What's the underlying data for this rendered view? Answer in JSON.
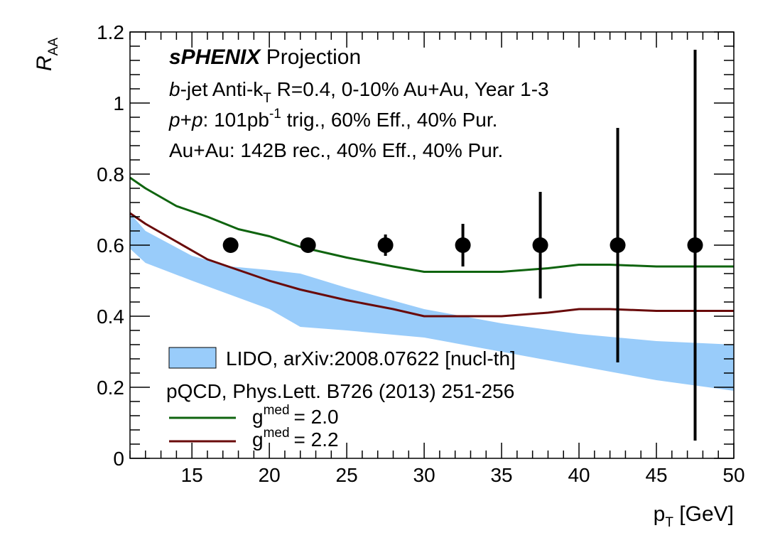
{
  "chart_data": {
    "type": "line",
    "title": "",
    "xlabel": "p",
    "xlabel_sub": "T",
    "xlabel_unit": " [GeV]",
    "ylabel": "R",
    "ylabel_sub": "AA",
    "xlim": [
      11,
      50
    ],
    "ylim": [
      0,
      1.2
    ],
    "x_ticks": [
      15,
      20,
      25,
      30,
      35,
      40,
      45,
      50
    ],
    "y_ticks": [
      0,
      0.2,
      0.4,
      0.6,
      0.8,
      1,
      1.2
    ],
    "y_tick_labels": [
      "0",
      "0.2",
      "0.4",
      "0.6",
      "0.8",
      "1",
      "1.2"
    ],
    "grid": false,
    "annotations": {
      "exp": "sPHENIX",
      "proj": " Projection",
      "line1_b": "b",
      "line1_a": "-jet Anti-k",
      "line1_sub": "T",
      "line1_b2": " R=0.4, 0-10% Au+Au, Year 1-3",
      "line2_p1": "p",
      "line2_plus": "+",
      "line2_p2": "p",
      "line2_a": ": 101pb",
      "line2_sup": "-1",
      "line2_b": " trig., 60% Eff., 40% Pur.",
      "line3": "Au+Au: 142B rec., 40% Eff., 40% Pur."
    },
    "legend": {
      "band_label": "LIDO, arXiv:2008.07622 [nucl-th]",
      "header": "pQCD, Phys.Lett. B726 (2013) 251-256",
      "g": "g",
      "med": "med",
      "line_labels": [
        "= 2.0",
        "= 2.2"
      ],
      "placement": "bottom-left"
    },
    "points": {
      "name": "sPHENIX Projection",
      "x": [
        17.5,
        22.5,
        27.5,
        32.5,
        37.5,
        42.5,
        47.5
      ],
      "y": [
        0.6,
        0.6,
        0.6,
        0.6,
        0.6,
        0.6,
        0.6
      ],
      "err": [
        0.003,
        0.005,
        0.03,
        0.06,
        0.15,
        0.33,
        0.55
      ]
    },
    "band": {
      "name": "LIDO, arXiv:2008.07622 [nucl-th]",
      "x": [
        11,
        12,
        15,
        17.5,
        20,
        22,
        25,
        30,
        35,
        40,
        45,
        50
      ],
      "upper": [
        0.69,
        0.64,
        0.57,
        0.54,
        0.53,
        0.52,
        0.48,
        0.42,
        0.38,
        0.35,
        0.33,
        0.32
      ],
      "lower": [
        0.59,
        0.55,
        0.5,
        0.46,
        0.42,
        0.37,
        0.36,
        0.34,
        0.3,
        0.26,
        0.22,
        0.19
      ]
    },
    "series": [
      {
        "name": "g med = 2.0",
        "color": "#0f640f",
        "x": [
          11,
          12,
          14,
          16,
          18,
          20,
          22,
          25,
          28,
          30,
          32,
          35,
          38,
          40,
          42,
          45,
          48,
          50
        ],
        "y": [
          0.79,
          0.76,
          0.71,
          0.68,
          0.645,
          0.625,
          0.595,
          0.565,
          0.54,
          0.525,
          0.525,
          0.525,
          0.535,
          0.545,
          0.545,
          0.54,
          0.54,
          0.54
        ]
      },
      {
        "name": "g med = 2.2",
        "color": "#690a0a",
        "x": [
          11,
          12,
          14,
          16,
          18,
          20,
          22,
          25,
          28,
          30,
          33,
          35,
          38,
          40,
          42,
          45,
          48,
          50
        ],
        "y": [
          0.69,
          0.66,
          0.61,
          0.56,
          0.53,
          0.5,
          0.475,
          0.445,
          0.42,
          0.4,
          0.4,
          0.4,
          0.41,
          0.42,
          0.42,
          0.415,
          0.415,
          0.415
        ]
      }
    ],
    "colors": {
      "band": "#99ccfa",
      "points": "#000000",
      "axis": "#000000"
    }
  }
}
